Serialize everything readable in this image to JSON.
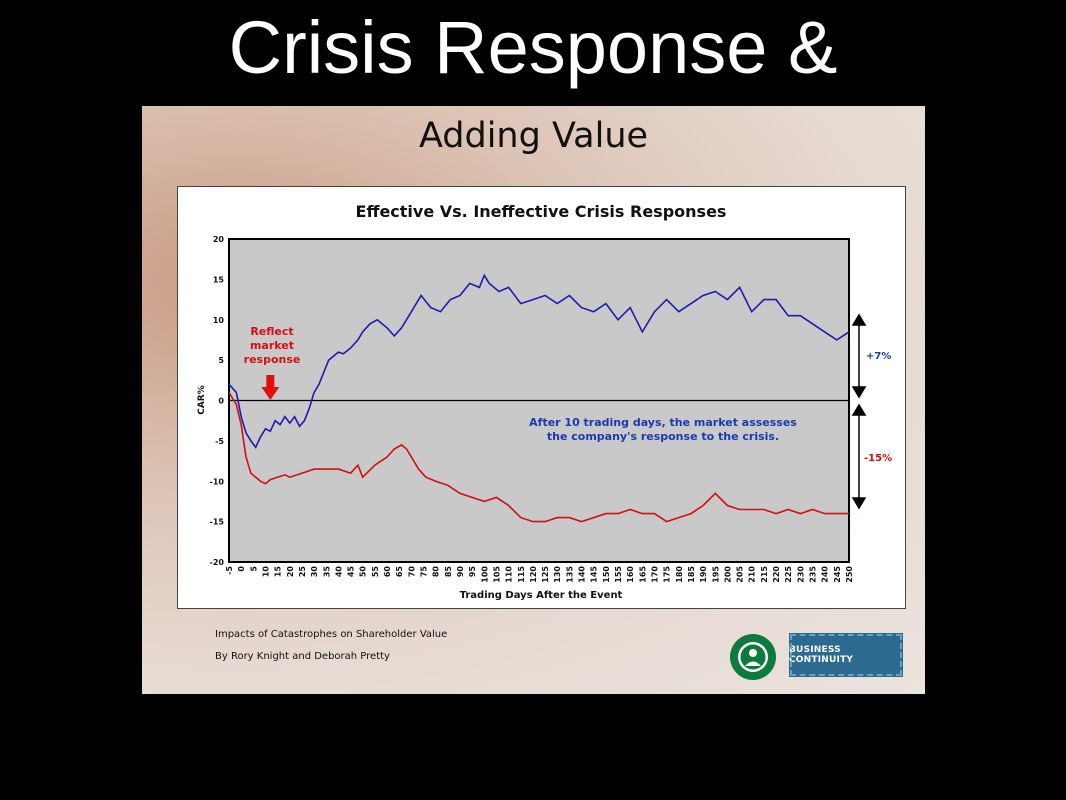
{
  "slide": {
    "title": "Crisis Response &"
  },
  "panel": {
    "title": "Adding Value",
    "caption_line1": "Impacts of Catastrophes on Shareholder Value",
    "caption_line2": "By Rory Knight and Deborah Pretty",
    "badge_text": "BUSINESS CONTINUITY",
    "logo_icon": "starbucks-logo-icon"
  },
  "chart_data": {
    "type": "line",
    "title": "Effective Vs. Ineffective Crisis Responses",
    "xlabel": "Trading Days After the Event",
    "ylabel": "CAR%",
    "xlim": [
      -5,
      250
    ],
    "ylim": [
      -20,
      20
    ],
    "x_ticks": [
      -5,
      0,
      5,
      10,
      15,
      20,
      25,
      30,
      35,
      40,
      45,
      50,
      55,
      60,
      65,
      70,
      75,
      80,
      85,
      90,
      95,
      100,
      105,
      110,
      115,
      120,
      125,
      130,
      135,
      140,
      145,
      150,
      155,
      160,
      165,
      170,
      175,
      180,
      185,
      190,
      195,
      200,
      205,
      210,
      215,
      220,
      225,
      230,
      235,
      240,
      245,
      250
    ],
    "y_ticks": [
      20,
      15,
      10,
      5,
      0,
      -5,
      -10,
      -15,
      -20
    ],
    "grid": false,
    "series": [
      {
        "color": "#1c1cb0",
        "x": [
          -5,
          -2,
          0,
          2,
          4,
          6,
          8,
          10,
          12,
          14,
          16,
          18,
          20,
          22,
          24,
          26,
          28,
          30,
          32,
          34,
          36,
          38,
          40,
          42,
          45,
          48,
          50,
          53,
          56,
          60,
          63,
          66,
          70,
          74,
          78,
          82,
          86,
          90,
          94,
          98,
          100,
          102,
          106,
          110,
          115,
          120,
          125,
          130,
          135,
          140,
          145,
          150,
          155,
          160,
          165,
          170,
          175,
          180,
          185,
          190,
          195,
          200,
          205,
          210,
          215,
          220,
          225,
          230,
          235,
          240,
          245,
          250
        ],
        "y": [
          2,
          1,
          -2,
          -4,
          -5,
          -5.8,
          -4.5,
          -3.5,
          -3.8,
          -2.5,
          -3,
          -2,
          -2.8,
          -2,
          -3.2,
          -2.5,
          -1,
          1,
          2,
          3.5,
          5,
          5.5,
          6,
          5.8,
          6.5,
          7.5,
          8.5,
          9.5,
          10,
          9,
          8,
          9,
          11,
          13,
          11.5,
          11,
          12.5,
          13,
          14.5,
          14,
          15.5,
          14.5,
          13.5,
          14,
          12,
          12.5,
          13,
          12,
          13,
          11.5,
          11,
          12,
          10,
          11.5,
          8.5,
          11,
          12.5,
          11,
          12,
          13,
          13.5,
          12.5,
          14,
          11,
          12.5,
          12.5,
          10.5,
          10.5,
          9.5,
          8.5,
          7.5,
          8.5
        ]
      },
      {
        "color": "#d01010",
        "x": [
          -5,
          -2,
          0,
          2,
          4,
          6,
          8,
          10,
          12,
          15,
          18,
          20,
          25,
          30,
          35,
          40,
          45,
          48,
          50,
          55,
          60,
          63,
          66,
          68,
          70,
          73,
          76,
          80,
          85,
          90,
          95,
          100,
          105,
          110,
          115,
          120,
          125,
          130,
          135,
          140,
          145,
          150,
          155,
          160,
          165,
          170,
          175,
          180,
          185,
          190,
          195,
          200,
          205,
          210,
          215,
          220,
          225,
          230,
          235,
          240,
          245,
          250
        ],
        "y": [
          1,
          -0.5,
          -3,
          -7,
          -9,
          -9.5,
          -10,
          -10.3,
          -9.8,
          -9.5,
          -9.2,
          -9.5,
          -9,
          -8.5,
          -8.5,
          -8.5,
          -9,
          -8,
          -9.5,
          -8,
          -7,
          -6,
          -5.5,
          -6,
          -7,
          -8.5,
          -9.5,
          -10,
          -10.5,
          -11.5,
          -12,
          -12.5,
          -12,
          -13,
          -14.5,
          -15,
          -15,
          -14.5,
          -14.5,
          -15,
          -14.5,
          -14,
          -14,
          -13.5,
          -14,
          -14,
          -15,
          -14.5,
          -14,
          -13,
          -11.5,
          -13,
          -13.5,
          -13.5,
          -13.5,
          -14,
          -13.5,
          -14,
          -13.5,
          -14,
          -14,
          -14
        ]
      }
    ],
    "annotations": {
      "reflect": [
        "Reflect",
        "market",
        "response"
      ],
      "note_line1": "After 10 trading days, the market assesses",
      "note_line2": "the company's response to the crisis.",
      "plus": "+7%",
      "minus": "-15%"
    },
    "arrow_at_x": 12
  }
}
